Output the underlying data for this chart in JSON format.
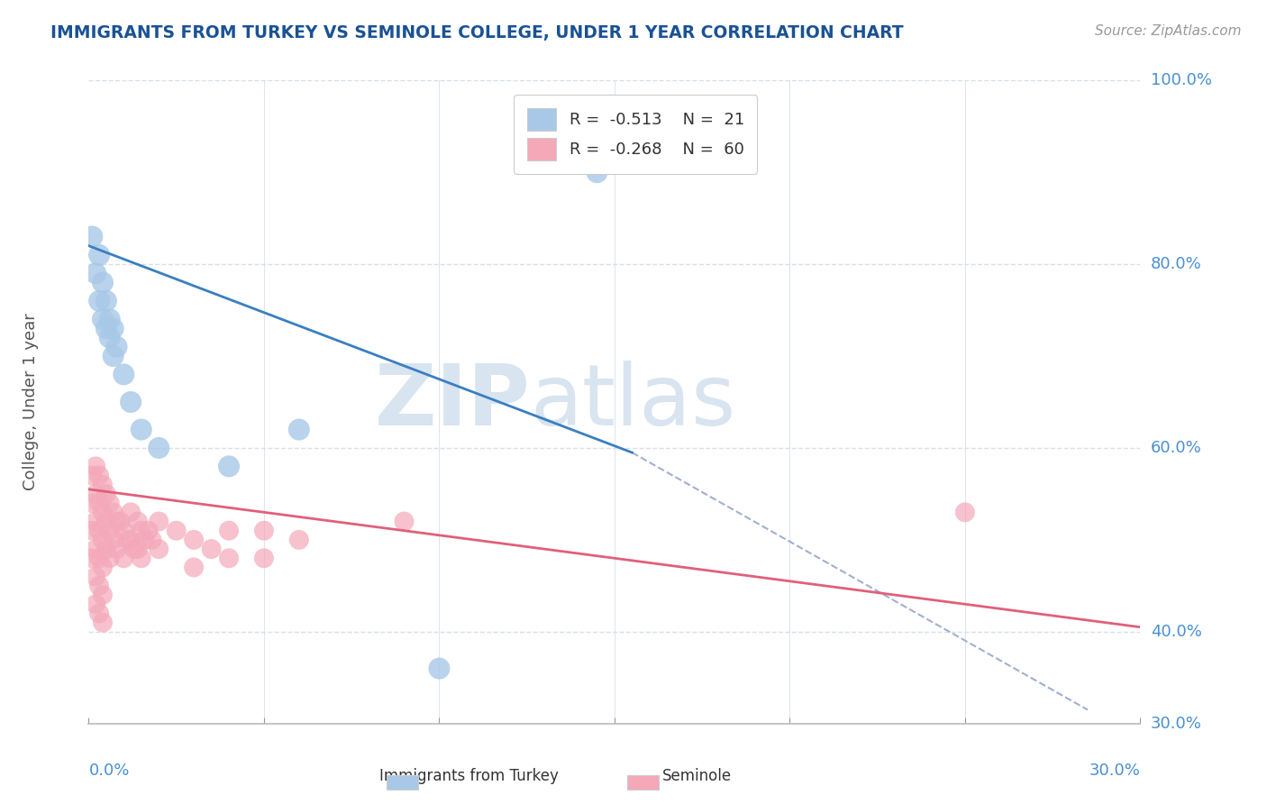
{
  "title": "IMMIGRANTS FROM TURKEY VS SEMINOLE COLLEGE, UNDER 1 YEAR CORRELATION CHART",
  "source": "Source: ZipAtlas.com",
  "ylabel": "College, Under 1 year",
  "xmin": 0.0,
  "xmax": 0.3,
  "ymin": 0.3,
  "ymax": 1.0,
  "blue_scatter": [
    [
      0.001,
      0.83
    ],
    [
      0.002,
      0.79
    ],
    [
      0.003,
      0.81
    ],
    [
      0.003,
      0.76
    ],
    [
      0.004,
      0.78
    ],
    [
      0.004,
      0.74
    ],
    [
      0.005,
      0.76
    ],
    [
      0.005,
      0.73
    ],
    [
      0.006,
      0.74
    ],
    [
      0.006,
      0.72
    ],
    [
      0.007,
      0.73
    ],
    [
      0.007,
      0.7
    ],
    [
      0.008,
      0.71
    ],
    [
      0.01,
      0.68
    ],
    [
      0.012,
      0.65
    ],
    [
      0.015,
      0.62
    ],
    [
      0.02,
      0.6
    ],
    [
      0.04,
      0.58
    ],
    [
      0.06,
      0.62
    ],
    [
      0.1,
      0.36
    ],
    [
      0.145,
      0.9
    ]
  ],
  "pink_scatter": [
    [
      0.001,
      0.57
    ],
    [
      0.001,
      0.54
    ],
    [
      0.001,
      0.51
    ],
    [
      0.001,
      0.48
    ],
    [
      0.002,
      0.58
    ],
    [
      0.002,
      0.55
    ],
    [
      0.002,
      0.52
    ],
    [
      0.002,
      0.49
    ],
    [
      0.002,
      0.46
    ],
    [
      0.002,
      0.43
    ],
    [
      0.003,
      0.57
    ],
    [
      0.003,
      0.54
    ],
    [
      0.003,
      0.51
    ],
    [
      0.003,
      0.48
    ],
    [
      0.003,
      0.45
    ],
    [
      0.003,
      0.42
    ],
    [
      0.004,
      0.56
    ],
    [
      0.004,
      0.53
    ],
    [
      0.004,
      0.5
    ],
    [
      0.004,
      0.47
    ],
    [
      0.004,
      0.44
    ],
    [
      0.004,
      0.41
    ],
    [
      0.005,
      0.55
    ],
    [
      0.005,
      0.52
    ],
    [
      0.005,
      0.49
    ],
    [
      0.006,
      0.54
    ],
    [
      0.006,
      0.51
    ],
    [
      0.006,
      0.48
    ],
    [
      0.007,
      0.53
    ],
    [
      0.007,
      0.5
    ],
    [
      0.008,
      0.52
    ],
    [
      0.008,
      0.49
    ],
    [
      0.009,
      0.52
    ],
    [
      0.01,
      0.51
    ],
    [
      0.01,
      0.48
    ],
    [
      0.011,
      0.5
    ],
    [
      0.012,
      0.53
    ],
    [
      0.012,
      0.5
    ],
    [
      0.013,
      0.49
    ],
    [
      0.014,
      0.52
    ],
    [
      0.014,
      0.49
    ],
    [
      0.015,
      0.51
    ],
    [
      0.015,
      0.48
    ],
    [
      0.016,
      0.5
    ],
    [
      0.017,
      0.51
    ],
    [
      0.018,
      0.5
    ],
    [
      0.02,
      0.52
    ],
    [
      0.02,
      0.49
    ],
    [
      0.025,
      0.51
    ],
    [
      0.03,
      0.5
    ],
    [
      0.03,
      0.47
    ],
    [
      0.035,
      0.49
    ],
    [
      0.04,
      0.51
    ],
    [
      0.04,
      0.48
    ],
    [
      0.05,
      0.51
    ],
    [
      0.05,
      0.48
    ],
    [
      0.06,
      0.5
    ],
    [
      0.09,
      0.52
    ],
    [
      0.25,
      0.53
    ]
  ],
  "blue_line": {
    "x0": 0.0,
    "y0": 0.82,
    "x1": 0.155,
    "y1": 0.595
  },
  "pink_line": {
    "x0": 0.0,
    "y0": 0.555,
    "x1": 0.3,
    "y1": 0.405
  },
  "dashed_line": {
    "x0": 0.155,
    "y0": 0.595,
    "x1": 0.285,
    "y1": 0.315
  },
  "watermark_zip": "ZIP",
  "watermark_atlas": "atlas",
  "blue_color": "#a8c8e8",
  "pink_color": "#f4a8b8",
  "blue_line_color": "#3a7fc1",
  "pink_line_color": "#e0607a",
  "dashed_line_color": "#a0b0d0",
  "grid_color": "#d8dfe8",
  "title_color": "#1a5294",
  "axis_color": "#4a90d0",
  "watermark_color": "#d8e4f0",
  "background_color": "#ffffff",
  "yticks": [
    0.3,
    0.4,
    0.6,
    0.8,
    1.0
  ],
  "ytick_labels": [
    "30.0%",
    "40.0%",
    "60.0%",
    "80.0%",
    "100.0%"
  ],
  "xticks": [
    0.0,
    0.05,
    0.1,
    0.15,
    0.2,
    0.25,
    0.3
  ]
}
